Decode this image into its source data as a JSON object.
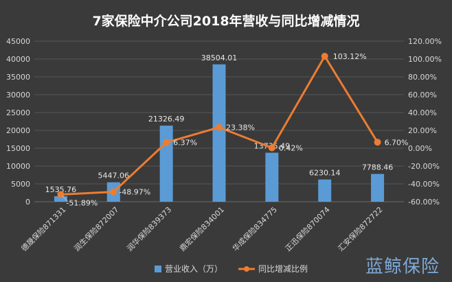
{
  "chart_data": {
    "type": "bar+line",
    "title": "7家保险中介公司2018年营收与同比增减情况",
    "categories": [
      "德晟保险871331",
      "润生保险872007",
      "润华保险839373",
      "鼎宏保险834001",
      "华成保险834775",
      "正迅保险870074",
      "汇安保险872722"
    ],
    "series": [
      {
        "name": "营业收入（万）",
        "kind": "bar",
        "axis": "left",
        "values": [
          1535.76,
          5447.06,
          21326.49,
          38504.01,
          13735.49,
          6230.14,
          7788.46
        ],
        "labels": [
          "1535.76",
          "5447.06",
          "21326.49",
          "38504.01",
          "13735.49",
          "6230.14",
          "7788.46"
        ]
      },
      {
        "name": "同比增减比例",
        "kind": "line",
        "axis": "right",
        "values": [
          -51.89,
          -48.97,
          6.37,
          23.38,
          0.42,
          103.12,
          6.7
        ],
        "labels": [
          "-51.89%",
          "-48.97%",
          "6.37%",
          "23.38%",
          "0.42%",
          "103.12%",
          "6.70%"
        ]
      }
    ],
    "y_left": {
      "range": [
        0,
        45000
      ],
      "ticks": [
        0,
        5000,
        10000,
        15000,
        20000,
        25000,
        30000,
        35000,
        40000,
        45000
      ],
      "tick_labels": [
        "0",
        "5000",
        "10000",
        "15000",
        "20000",
        "25000",
        "30000",
        "35000",
        "40000",
        "45000"
      ]
    },
    "y_right": {
      "range": [
        -60,
        120
      ],
      "ticks": [
        -60,
        -40,
        -20,
        0,
        20,
        40,
        60,
        80,
        100,
        120
      ],
      "tick_labels": [
        "-60.00%",
        "-40.00%",
        "-20.00%",
        "0.00%",
        "20.00%",
        "40.00%",
        "60.00%",
        "80.00%",
        "100.00%",
        "120.00%"
      ]
    },
    "grid": true,
    "legend": "bottom",
    "colors": {
      "bar": "#5b9bd5",
      "line": "#ed7d31",
      "grid": "#555555",
      "text": "#d9d9d9",
      "title": "#ffffff"
    }
  },
  "watermark": "蓝鲸保险"
}
